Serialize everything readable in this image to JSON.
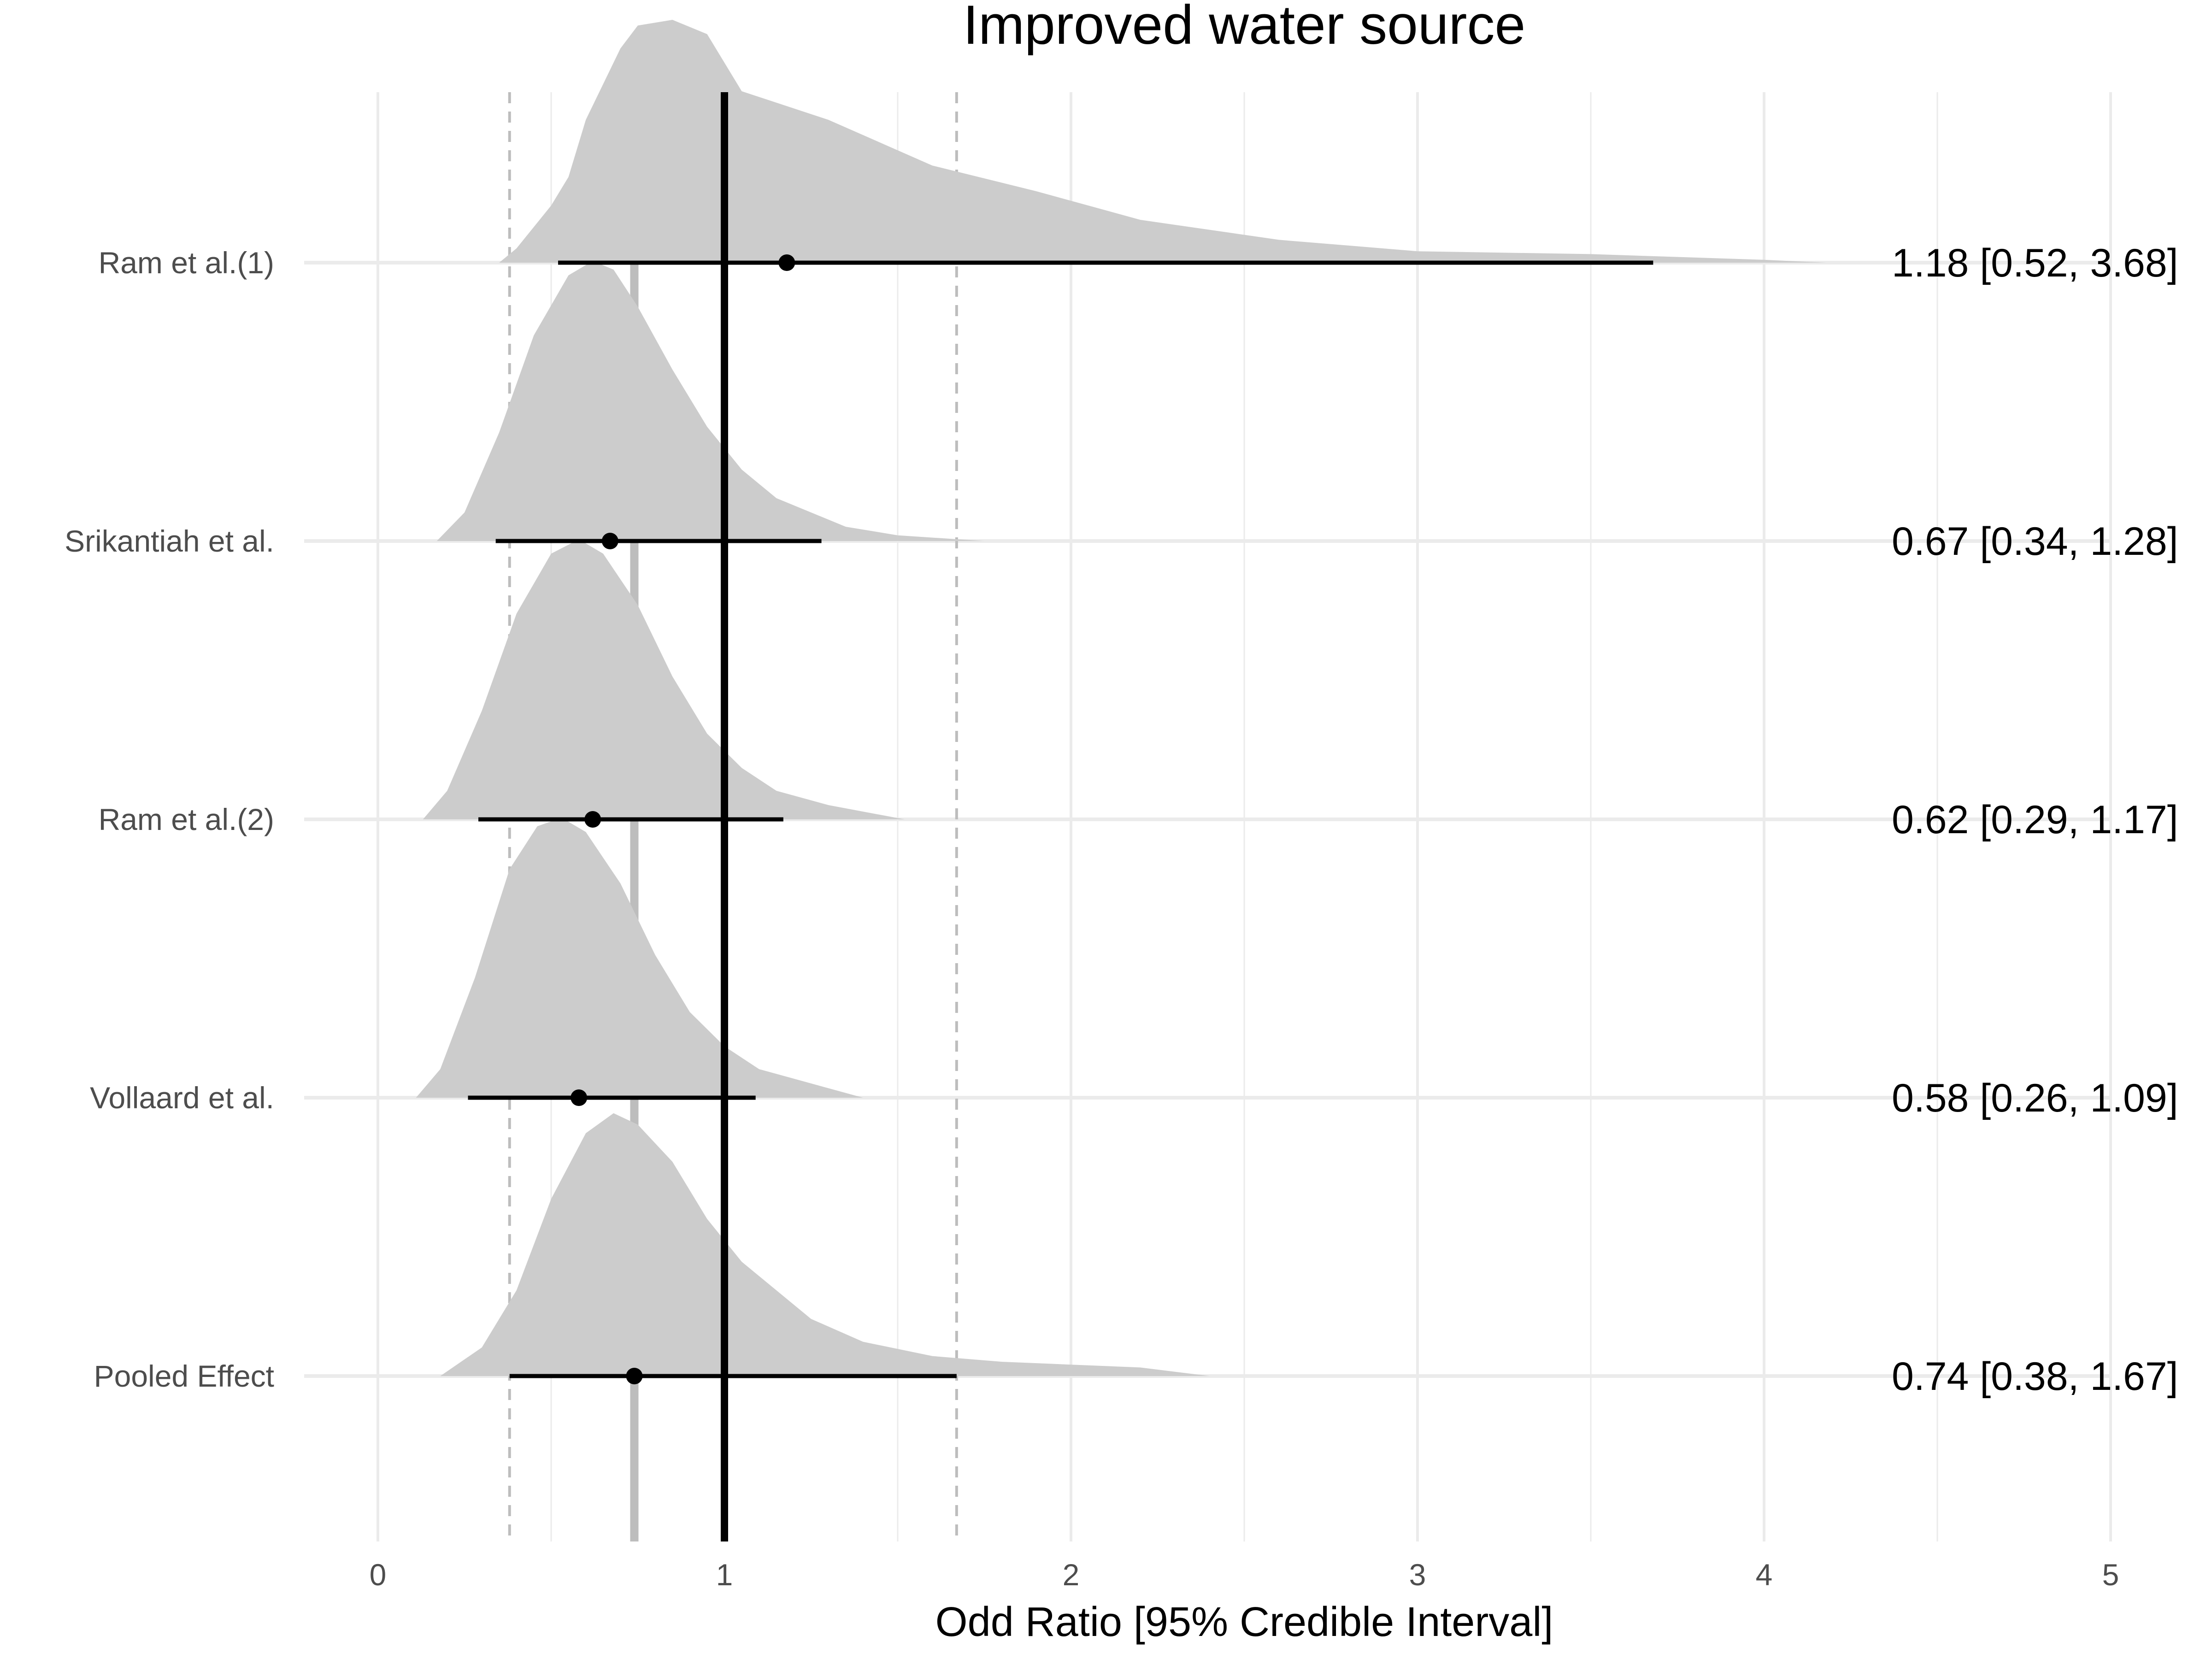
{
  "chart_data": {
    "type": "forest-density",
    "title": "Improved water source",
    "xlabel": "Odd Ratio [95% Credible Interval]",
    "ylabel": "",
    "xlim": [
      0,
      5
    ],
    "x_ticks": [
      0,
      1,
      2,
      3,
      4,
      5
    ],
    "x_tick_labels": [
      "0",
      "1",
      "2",
      "3",
      "4",
      "5"
    ],
    "grid": true,
    "reference_line": 1,
    "pooled_estimate_line": 0.74,
    "pooled_interval_lines": [
      0.38,
      1.67
    ],
    "density_color": "#cccccc",
    "studies": [
      {
        "label": "Ram et al.(1)",
        "estimate": 1.18,
        "lower": 0.52,
        "upper": 3.68,
        "text": "1.18 [0.52, 3.68]",
        "density": [
          [
            0.35,
            0
          ],
          [
            0.4,
            0.05
          ],
          [
            0.5,
            0.2
          ],
          [
            0.55,
            0.3
          ],
          [
            0.6,
            0.5
          ],
          [
            0.7,
            0.75
          ],
          [
            0.75,
            0.83
          ],
          [
            0.85,
            0.85
          ],
          [
            0.95,
            0.8
          ],
          [
            1.05,
            0.6
          ],
          [
            1.3,
            0.5
          ],
          [
            1.6,
            0.34
          ],
          [
            1.9,
            0.25
          ],
          [
            2.2,
            0.15
          ],
          [
            2.6,
            0.08
          ],
          [
            3.0,
            0.04
          ],
          [
            3.5,
            0.03
          ],
          [
            4.0,
            0.01
          ],
          [
            4.18,
            0
          ]
        ]
      },
      {
        "label": "Srikantiah et al.",
        "estimate": 0.67,
        "lower": 0.34,
        "upper": 1.28,
        "text": "0.67 [0.34, 1.28]",
        "density": [
          [
            0.17,
            0
          ],
          [
            0.25,
            0.1
          ],
          [
            0.35,
            0.38
          ],
          [
            0.45,
            0.72
          ],
          [
            0.55,
            0.93
          ],
          [
            0.62,
            0.98
          ],
          [
            0.68,
            0.95
          ],
          [
            0.75,
            0.82
          ],
          [
            0.85,
            0.6
          ],
          [
            0.95,
            0.4
          ],
          [
            1.05,
            0.25
          ],
          [
            1.15,
            0.15
          ],
          [
            1.25,
            0.1
          ],
          [
            1.35,
            0.05
          ],
          [
            1.5,
            0.02
          ],
          [
            1.75,
            0
          ]
        ]
      },
      {
        "label": "Ram et al.(2)",
        "estimate": 0.62,
        "lower": 0.29,
        "upper": 1.17,
        "text": "0.62 [0.29, 1.17]",
        "density": [
          [
            0.13,
            0
          ],
          [
            0.2,
            0.1
          ],
          [
            0.3,
            0.38
          ],
          [
            0.4,
            0.72
          ],
          [
            0.5,
            0.93
          ],
          [
            0.58,
            0.98
          ],
          [
            0.65,
            0.93
          ],
          [
            0.75,
            0.75
          ],
          [
            0.85,
            0.5
          ],
          [
            0.95,
            0.3
          ],
          [
            1.05,
            0.18
          ],
          [
            1.15,
            0.1
          ],
          [
            1.3,
            0.05
          ],
          [
            1.52,
            0
          ]
        ]
      },
      {
        "label": "Vollaard et al.",
        "estimate": 0.58,
        "lower": 0.26,
        "upper": 1.09,
        "text": "0.58 [0.26, 1.09]",
        "density": [
          [
            0.11,
            0
          ],
          [
            0.18,
            0.1
          ],
          [
            0.28,
            0.42
          ],
          [
            0.38,
            0.8
          ],
          [
            0.46,
            0.95
          ],
          [
            0.53,
            0.98
          ],
          [
            0.6,
            0.93
          ],
          [
            0.7,
            0.75
          ],
          [
            0.8,
            0.5
          ],
          [
            0.9,
            0.3
          ],
          [
            1.0,
            0.18
          ],
          [
            1.1,
            0.1
          ],
          [
            1.25,
            0.05
          ],
          [
            1.4,
            0
          ]
        ]
      },
      {
        "label": "Pooled Effect",
        "estimate": 0.74,
        "lower": 0.38,
        "upper": 1.67,
        "text": "0.74 [0.38, 1.67]",
        "density": [
          [
            0.18,
            0
          ],
          [
            0.3,
            0.1
          ],
          [
            0.4,
            0.3
          ],
          [
            0.5,
            0.62
          ],
          [
            0.6,
            0.85
          ],
          [
            0.68,
            0.92
          ],
          [
            0.75,
            0.88
          ],
          [
            0.85,
            0.75
          ],
          [
            0.95,
            0.55
          ],
          [
            1.05,
            0.4
          ],
          [
            1.15,
            0.3
          ],
          [
            1.25,
            0.2
          ],
          [
            1.4,
            0.12
          ],
          [
            1.6,
            0.07
          ],
          [
            1.8,
            0.05
          ],
          [
            2.0,
            0.04
          ],
          [
            2.2,
            0.03
          ],
          [
            2.4,
            0
          ]
        ]
      }
    ]
  }
}
